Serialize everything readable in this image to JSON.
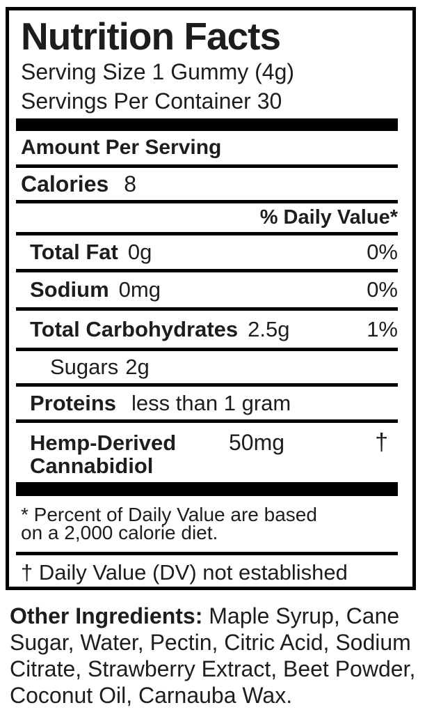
{
  "label": {
    "title": "Nutrition Facts",
    "serving_size": "Serving Size 1 Gummy (4g)",
    "servings_per_container": "Servings Per Container 30",
    "amount_per_serving": "Amount Per Serving",
    "calories": {
      "name": "Calories",
      "value": "8"
    },
    "daily_value_header": "% Daily Value*",
    "rows": [
      {
        "name": "Total Fat",
        "amount": "0g",
        "dv": "0%"
      },
      {
        "name": "Sodium",
        "amount": "0mg",
        "dv": "0%"
      },
      {
        "name": "Total Carbohydrates",
        "amount": "2.5g",
        "dv": "1%"
      },
      {
        "name": "Sugars",
        "amount": "2g",
        "dv": ""
      },
      {
        "name": "Proteins",
        "amount": "less than 1 gram",
        "dv": ""
      },
      {
        "name": "Hemp-Derived Cannabidiol",
        "amount": "50mg",
        "dv": "†"
      }
    ],
    "footnote_line1": "* Percent of Daily Value are based",
    "footnote_line2": "on a 2,000 calorie diet.",
    "dv_note": "† Daily Value (DV) not established"
  },
  "other_ingredients": {
    "label": "Other Ingredients:",
    "text": " Maple Syrup, Cane Sugar, Water, Pectin, Citric Acid, Sodium Citrate, Strawberry Extract, Beet Powder, Coconut Oil, Carnauba Wax."
  },
  "colors": {
    "text": "#1d1d1b",
    "rule": "#000000",
    "background": "#ffffff"
  }
}
